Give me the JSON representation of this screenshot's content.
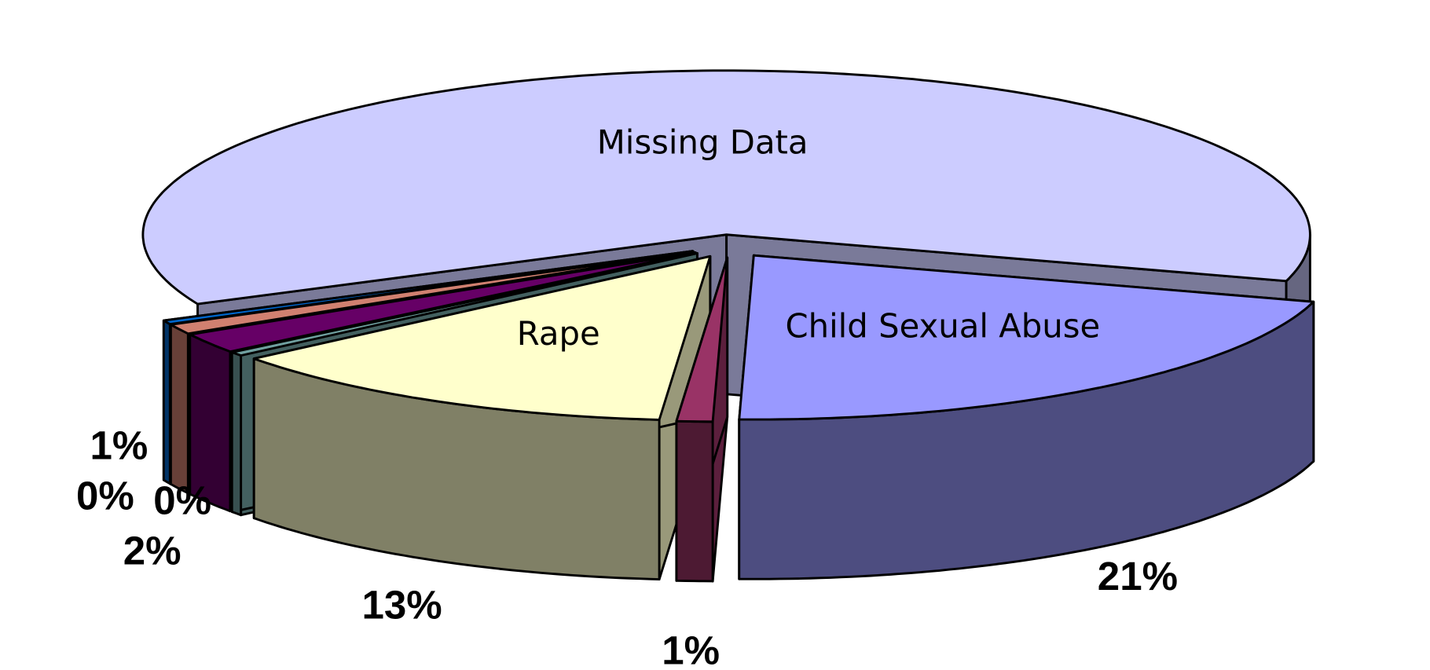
{
  "chart_data": {
    "type": "pie",
    "style": "3d-exploded",
    "categories": [
      "Missing Data",
      "Child Sexual Abuse",
      null,
      "Rape",
      null,
      null,
      null,
      null
    ],
    "values": [
      62,
      21,
      1,
      13,
      0.4,
      2,
      1,
      0.4
    ],
    "value_labels": [
      "62%",
      "21%",
      "1%",
      "13%",
      "0%",
      "2%",
      "1%",
      "0%"
    ],
    "colors": [
      "#ccccff",
      "#9999ff",
      "#993366",
      "#ffffcc",
      "#70a0a0",
      "#660066",
      "#d08070",
      "#0066cc"
    ]
  }
}
